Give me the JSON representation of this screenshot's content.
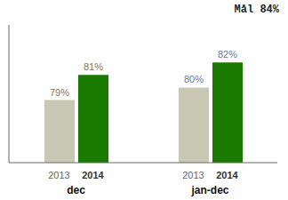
{
  "chart_data": {
    "type": "bar",
    "categories": [
      "dec",
      "jan-dec"
    ],
    "series": [
      {
        "name": "2013",
        "color": "#c8c8b4",
        "values": [
          79,
          80
        ],
        "value_labels": [
          "79%",
          "80%"
        ]
      },
      {
        "name": "2014",
        "color": "#1a7a00",
        "values": [
          81,
          82
        ],
        "value_labels": [
          "81%",
          "82%"
        ]
      }
    ],
    "ylim": [
      74,
      85
    ],
    "data_labels": true,
    "tick_labels": "x",
    "annotations": [
      "Mål 84%"
    ]
  }
}
